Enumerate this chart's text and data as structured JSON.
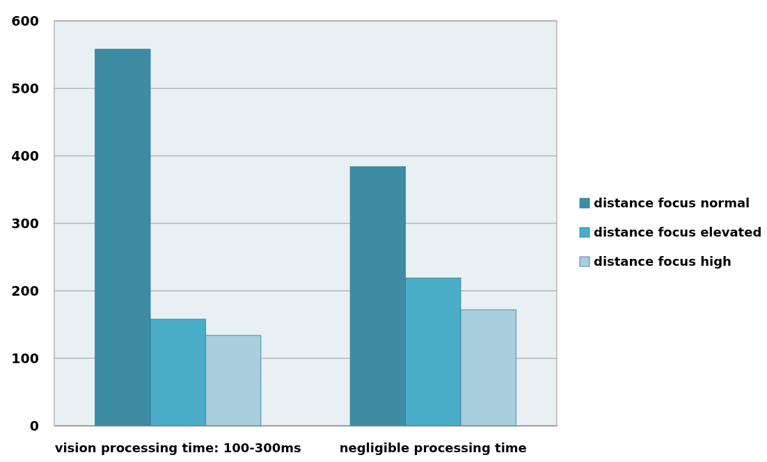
{
  "chart_data": {
    "type": "bar",
    "categories": [
      "vision processing time: 100-300ms",
      "negligible processing time"
    ],
    "series": [
      {
        "name": "distance focus normal",
        "color": "#3d8ca4",
        "values": [
          558,
          384
        ]
      },
      {
        "name": "distance focus elevated",
        "color": "#4aadc8",
        "values": [
          158,
          219
        ]
      },
      {
        "name": "distance focus high",
        "color": "#a9cedd",
        "values": [
          134,
          172
        ]
      }
    ],
    "ylim": [
      0,
      600
    ],
    "yticks": [
      0,
      100,
      200,
      300,
      400,
      500,
      600
    ],
    "grid": "y",
    "legend": "right"
  }
}
